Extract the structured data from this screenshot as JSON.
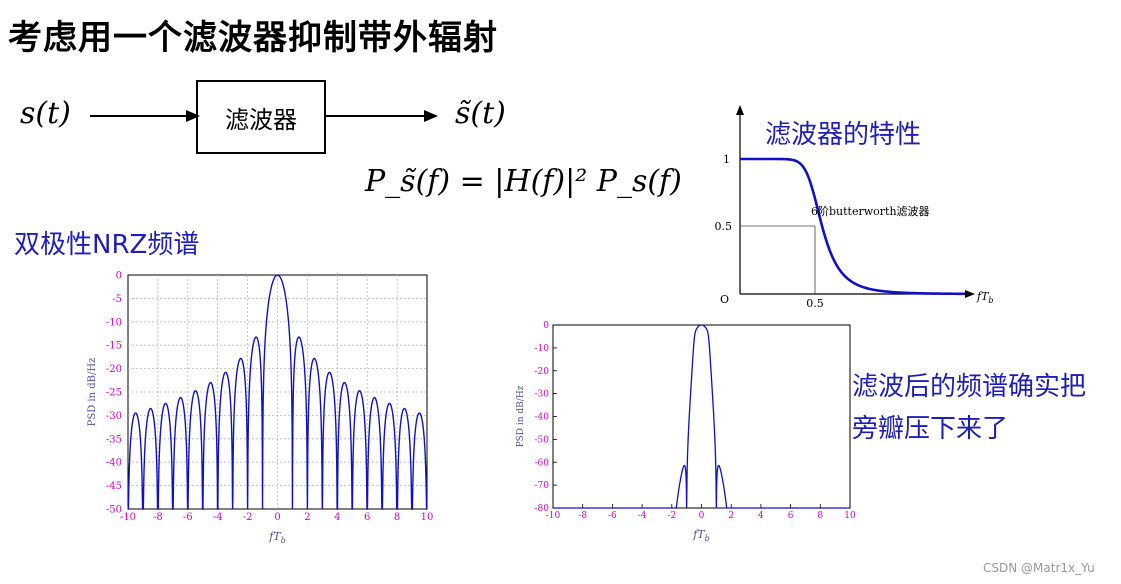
{
  "slide": {
    "title": "考虑用一个滤波器抑制带外辐射",
    "watermark": "CSDN @Matr1x_Yu"
  },
  "block_diagram": {
    "input": "s(t)",
    "box_label": "滤波器",
    "output": "s̃(t)",
    "equation": "P_s̃(f) = |H(f)|² P_s(f)"
  },
  "labels": {
    "nrz_spectrum": "双极性NRZ频谱",
    "filter_char": "滤波器的特性",
    "after_filter_line1": "滤波后的频谱确实把",
    "after_filter_line2": "旁瓣压下来了"
  },
  "chart_data": [
    {
      "type": "line",
      "name": "nrz-psd",
      "xlabel": "fT",
      "xlabel_sub": "b",
      "ylabel": "PSD  in  dB/Hz",
      "xlim": [
        -10,
        10
      ],
      "ylim": [
        -50,
        0
      ],
      "xticks": [
        "-10",
        "-8",
        "-6",
        "-4",
        "-2",
        "0",
        "2",
        "4",
        "6",
        "8",
        "10"
      ],
      "yticks": [
        "0",
        "-5",
        "-10",
        "-15",
        "-20",
        "-25",
        "-30",
        "-35",
        "-40",
        "-45",
        "-50"
      ],
      "grid": true,
      "lobes": [
        {
          "x": 0,
          "peak": 0
        },
        {
          "x": 1.43,
          "peak": -13.5
        },
        {
          "x": 2.46,
          "peak": -17.9
        },
        {
          "x": 3.47,
          "peak": -20.8
        },
        {
          "x": 4.48,
          "peak": -23.0
        },
        {
          "x": 5.48,
          "peak": -24.7
        },
        {
          "x": 6.49,
          "peak": -26.2
        },
        {
          "x": 7.49,
          "peak": -27.4
        },
        {
          "x": 8.49,
          "peak": -28.5
        },
        {
          "x": 9.49,
          "peak": -29.5
        }
      ]
    },
    {
      "type": "line",
      "name": "butterworth-response",
      "annotation": "6阶butterworth滤波器",
      "xlabel": "fT",
      "xlabel_sub": "b",
      "origin_label": "O",
      "yticks": [
        "1",
        "0.5"
      ],
      "xticks": [
        "0.5"
      ],
      "order": 6,
      "cutoff": 0.5
    },
    {
      "type": "line",
      "name": "filtered-psd",
      "xlabel": "fT",
      "xlabel_sub": "b",
      "ylabel": "PSD in dB/Hz",
      "xlim": [
        -10,
        10
      ],
      "ylim": [
        -80,
        0
      ],
      "xticks": [
        "-10",
        "-8",
        "-6",
        "-4",
        "-2",
        "0",
        "2",
        "4",
        "6",
        "8",
        "10"
      ],
      "yticks": [
        "0",
        "-10",
        "-20",
        "-30",
        "-40",
        "-50",
        "-60",
        "-70",
        "-80"
      ],
      "grid": false,
      "order": 6,
      "cutoff": 0.5
    }
  ],
  "colors": {
    "curve": "#1010c8",
    "tick_label": "#e000c8",
    "axis_label": "#5050a0",
    "heading": "#1f1fb8",
    "grid": "#b8b8b8"
  }
}
